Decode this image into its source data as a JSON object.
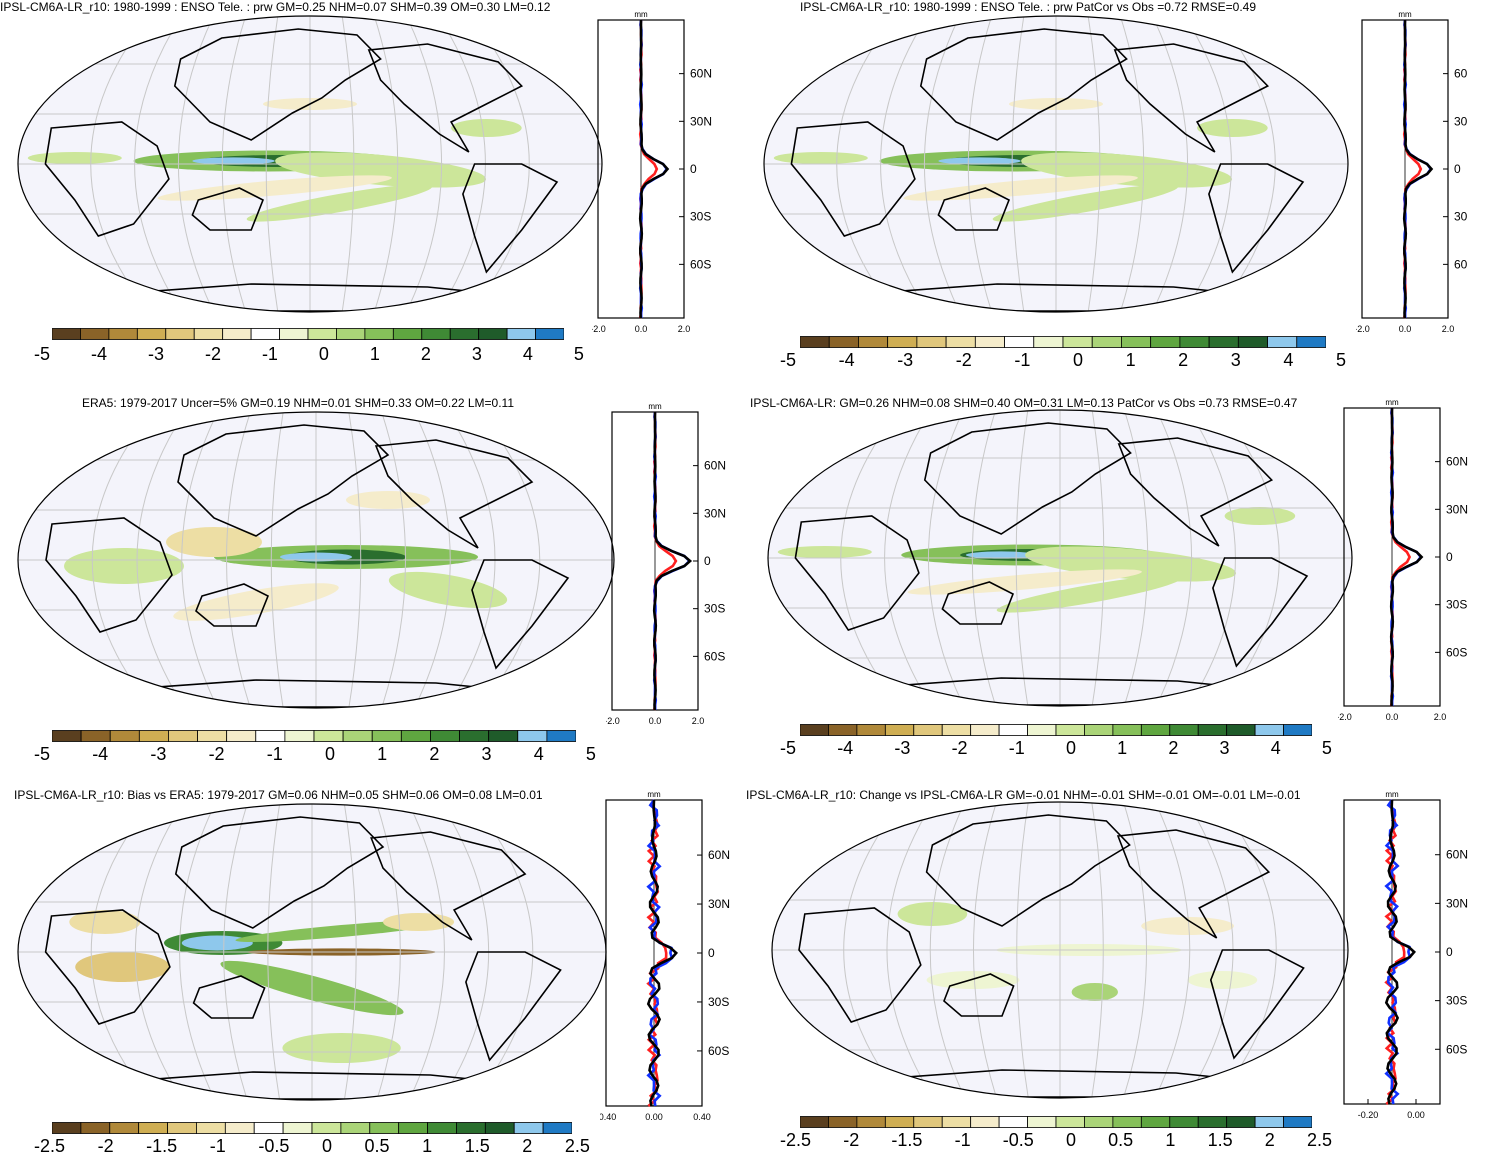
{
  "colors": {
    "palette": [
      "#5a3f1f",
      "#8a6328",
      "#b0893a",
      "#cfae53",
      "#e0c77c",
      "#eddea4",
      "#f5eccb",
      "#ffffff",
      "#eef5d2",
      "#cce69a",
      "#aad478",
      "#86c05a",
      "#5fa640",
      "#3f8a35",
      "#2a6e2e",
      "#1f5b2a",
      "#8ec8ec",
      "#1f7ac4"
    ],
    "red_line": "#ff2020",
    "blue_line": "#1030ff",
    "black_line": "#000000",
    "map_bg": "#f4f4fb",
    "grid": "#c8c8c8"
  },
  "panels": [
    {
      "id": "p1",
      "title": "IPSL-CM6A-LR_r10: 1980-1999 : ENSO Tele. : prw GM=0.25 NHM=0.07 SHM=0.39 OM=0.30 LM=0.12",
      "colorbar_labels": [
        "-5",
        "-4",
        "-3",
        "-2",
        "-1",
        "0",
        "1",
        "2",
        "3",
        "4",
        "5"
      ],
      "profile": {
        "unit": "mm",
        "xticks": [
          "-2.0",
          "0.0",
          "2.0"
        ],
        "yticks": [
          "60N",
          "30N",
          "0",
          "30S",
          "60S"
        ],
        "ytick_side": "right"
      }
    },
    {
      "id": "p2",
      "title": "IPSL-CM6A-LR_r10: 1980-1999 : ENSO Tele. : prw PatCor vs Obs =0.72 RMSE=0.49",
      "colorbar_labels": [
        "-5",
        "-4",
        "-3",
        "-2",
        "-1",
        "0",
        "1",
        "2",
        "3",
        "4",
        "5"
      ],
      "profile": {
        "unit": "mm",
        "xticks": [
          "-2.0",
          "0.0",
          "2.0"
        ],
        "yticks": [
          "60",
          "30",
          "0",
          "30",
          "60"
        ],
        "ytick_side": "right"
      }
    },
    {
      "id": "p3",
      "title": "ERA5: 1979-2017 Uncer=5% GM=0.19 NHM=0.01 SHM=0.33 OM=0.22 LM=0.11",
      "colorbar_labels": [
        "-5",
        "-4",
        "-3",
        "-2",
        "-1",
        "0",
        "1",
        "2",
        "3",
        "4",
        "5"
      ],
      "profile": {
        "unit": "mm",
        "xticks": [
          "-2.0",
          "0.0",
          "2.0"
        ],
        "yticks": [
          "60N",
          "30N",
          "0",
          "30S",
          "60S"
        ],
        "ytick_side": "right"
      }
    },
    {
      "id": "p4",
      "title": "IPSL-CM6A-LR: GM=0.26 NHM=0.08 SHM=0.40 OM=0.31 LM=0.13 PatCor vs Obs =0.73 RMSE=0.47",
      "colorbar_labels": [
        "-5",
        "-4",
        "-3",
        "-2",
        "-1",
        "0",
        "1",
        "2",
        "3",
        "4",
        "5"
      ],
      "profile": {
        "unit": "mm",
        "xticks": [
          "-2.0",
          "0.0",
          "2.0"
        ],
        "yticks": [
          "60N",
          "30N",
          "0",
          "30S",
          "60S"
        ],
        "ytick_side": "right"
      }
    },
    {
      "id": "p5",
      "title": "IPSL-CM6A-LR_r10: Bias vs ERA5: 1979-2017 GM=0.06 NHM=0.05 SHM=0.06 OM=0.08 LM=0.01",
      "colorbar_labels": [
        "-2.5",
        "-2",
        "-1.5",
        "-1",
        "-0.5",
        "0",
        "0.5",
        "1",
        "1.5",
        "2",
        "2.5"
      ],
      "profile": {
        "unit": "mm",
        "xticks": [
          "-0.40",
          "0.00",
          "0.40"
        ],
        "yticks": [
          "60N",
          "30N",
          "0",
          "30S",
          "60S"
        ],
        "ytick_side": "right"
      }
    },
    {
      "id": "p6",
      "title": "IPSL-CM6A-LR_r10: Change vs IPSL-CM6A-LR GM=-0.01 NHM=-0.01 SHM=-0.01 OM=-0.01 LM=-0.01",
      "colorbar_labels": [
        "-2.5",
        "-2",
        "-1.5",
        "-1",
        "-0.5",
        "0",
        "0.5",
        "1",
        "1.5",
        "2",
        "2.5"
      ],
      "profile": {
        "unit": "mm",
        "xticks": [
          "-0.20",
          "0.00"
        ],
        "yticks": [
          "60N",
          "30N",
          "0",
          "30S",
          "60S"
        ],
        "ytick_side": "right"
      }
    }
  ]
}
